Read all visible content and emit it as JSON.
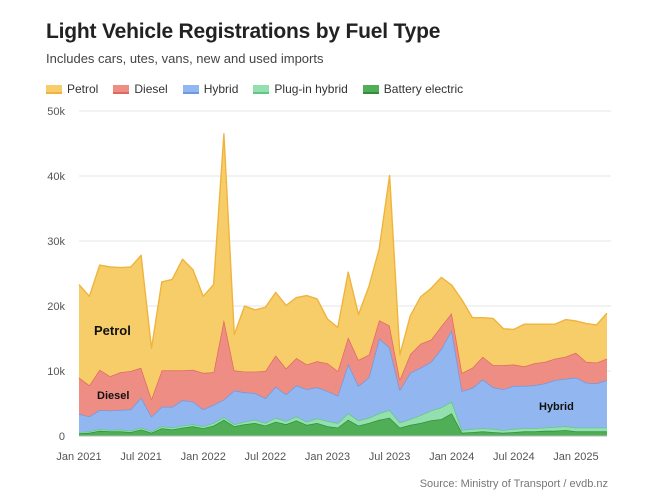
{
  "title": "Light Vehicle Registrations by Fuel Type",
  "subtitle": "Includes cars, utes, vans, new and used imports",
  "source": "Source: Ministry of Transport / evdb.nz",
  "colors": {
    "Petrol": {
      "fill": "#f7cd6a",
      "stroke": "#f0b43c"
    },
    "Diesel": {
      "fill": "#ed8d84",
      "stroke": "#e0675c"
    },
    "Hybrid": {
      "fill": "#92b6ef",
      "stroke": "#6f98e3"
    },
    "Plug-in hybrid": {
      "fill": "#94dfae",
      "stroke": "#5ec982"
    },
    "Battery electric": {
      "fill": "#4fae56",
      "stroke": "#2e8f3a"
    }
  },
  "chart_data": {
    "type": "area",
    "stacked": true,
    "title": "Light Vehicle Registrations by Fuel Type",
    "subtitle": "Includes cars, utes, vans, new and used imports",
    "legend_position": "top-left",
    "grid": "horizontal",
    "ylim": [
      0,
      50000
    ],
    "y_ticks": [
      "0",
      "10k",
      "20k",
      "30k",
      "40k",
      "50k"
    ],
    "x_ticks": [
      "Jan 2021",
      "Jul 2021",
      "Jan 2022",
      "Jul 2022",
      "Jan 2023",
      "Jul 2023",
      "Jan 2024",
      "Jul 2024",
      "Jan 2025"
    ],
    "x": [
      "2021-01",
      "2021-02",
      "2021-03",
      "2021-04",
      "2021-05",
      "2021-06",
      "2021-07",
      "2021-08",
      "2021-09",
      "2021-10",
      "2021-11",
      "2021-12",
      "2022-01",
      "2022-02",
      "2022-03",
      "2022-04",
      "2022-05",
      "2022-06",
      "2022-07",
      "2022-08",
      "2022-09",
      "2022-10",
      "2022-11",
      "2022-12",
      "2023-01",
      "2023-02",
      "2023-03",
      "2023-04",
      "2023-05",
      "2023-06",
      "2023-07",
      "2023-08",
      "2023-09",
      "2023-10",
      "2023-11",
      "2023-12",
      "2024-01",
      "2024-02",
      "2024-03",
      "2024-04",
      "2024-05",
      "2024-06",
      "2024-07",
      "2024-08",
      "2024-09",
      "2024-10",
      "2024-11",
      "2024-12",
      "2025-01",
      "2025-02",
      "2025-03",
      "2025-04"
    ],
    "series": [
      {
        "name": "Battery electric",
        "values": [
          400,
          500,
          800,
          700,
          700,
          600,
          1000,
          500,
          1200,
          1000,
          1300,
          1500,
          1200,
          1600,
          2500,
          1500,
          1800,
          2000,
          1600,
          2200,
          1800,
          2400,
          1700,
          2000,
          1500,
          1300,
          2500,
          1600,
          2000,
          2500,
          2800,
          1300,
          1700,
          2000,
          2400,
          2600,
          3500,
          500,
          600,
          700,
          600,
          500,
          600,
          700,
          700,
          800,
          800,
          900,
          700,
          700,
          700,
          700
        ]
      },
      {
        "name": "Plug-in hybrid",
        "values": [
          200,
          200,
          300,
          200,
          300,
          200,
          300,
          200,
          300,
          300,
          300,
          300,
          300,
          400,
          400,
          300,
          400,
          500,
          400,
          600,
          500,
          600,
          500,
          700,
          800,
          700,
          1000,
          800,
          800,
          1000,
          1200,
          800,
          900,
          1200,
          1500,
          1800,
          1800,
          400,
          500,
          500,
          500,
          400,
          500,
          500,
          500,
          500,
          600,
          600,
          600,
          600,
          600,
          600
        ]
      },
      {
        "name": "Hybrid",
        "values": [
          2800,
          2300,
          2900,
          3000,
          3000,
          3300,
          4600,
          2300,
          3000,
          3200,
          3900,
          3500,
          2600,
          2800,
          2700,
          5200,
          4500,
          4100,
          3800,
          4800,
          4100,
          4800,
          5000,
          4800,
          4600,
          4200,
          7600,
          5300,
          6200,
          11500,
          9600,
          5000,
          7100,
          7300,
          7500,
          9000,
          11000,
          6000,
          6300,
          7500,
          6400,
          6300,
          6600,
          6500,
          6600,
          6800,
          7200,
          7300,
          7700,
          6900,
          6800,
          7300
        ]
      },
      {
        "name": "Diesel",
        "values": [
          5600,
          4800,
          6200,
          5300,
          5800,
          5900,
          4600,
          2700,
          5600,
          5600,
          4600,
          4900,
          5600,
          5000,
          12300,
          3100,
          3200,
          3300,
          4200,
          4800,
          4000,
          4200,
          3800,
          4000,
          4300,
          3800,
          4100,
          4000,
          3500,
          2800,
          3400,
          1600,
          2900,
          3700,
          3400,
          3500,
          2600,
          2800,
          3100,
          3500,
          3400,
          3700,
          3300,
          3000,
          3400,
          3300,
          3300,
          3400,
          3800,
          3200,
          3200,
          3300
        ]
      },
      {
        "name": "Petrol",
        "values": [
          14300,
          13700,
          16100,
          16800,
          16100,
          16000,
          17300,
          7800,
          13600,
          14000,
          17100,
          15400,
          11800,
          13500,
          28600,
          5500,
          10100,
          9500,
          9800,
          9700,
          9700,
          9300,
          10600,
          9600,
          6800,
          6700,
          10000,
          7000,
          10500,
          11000,
          23100,
          3800,
          5900,
          7200,
          7900,
          7500,
          4300,
          11200,
          7700,
          6000,
          7200,
          5600,
          5400,
          6500,
          6000,
          5800,
          5300,
          5700,
          4900,
          5900,
          5800,
          7000
        ]
      }
    ],
    "annotations": [
      "Petrol",
      "Diesel",
      "Hybrid"
    ]
  }
}
